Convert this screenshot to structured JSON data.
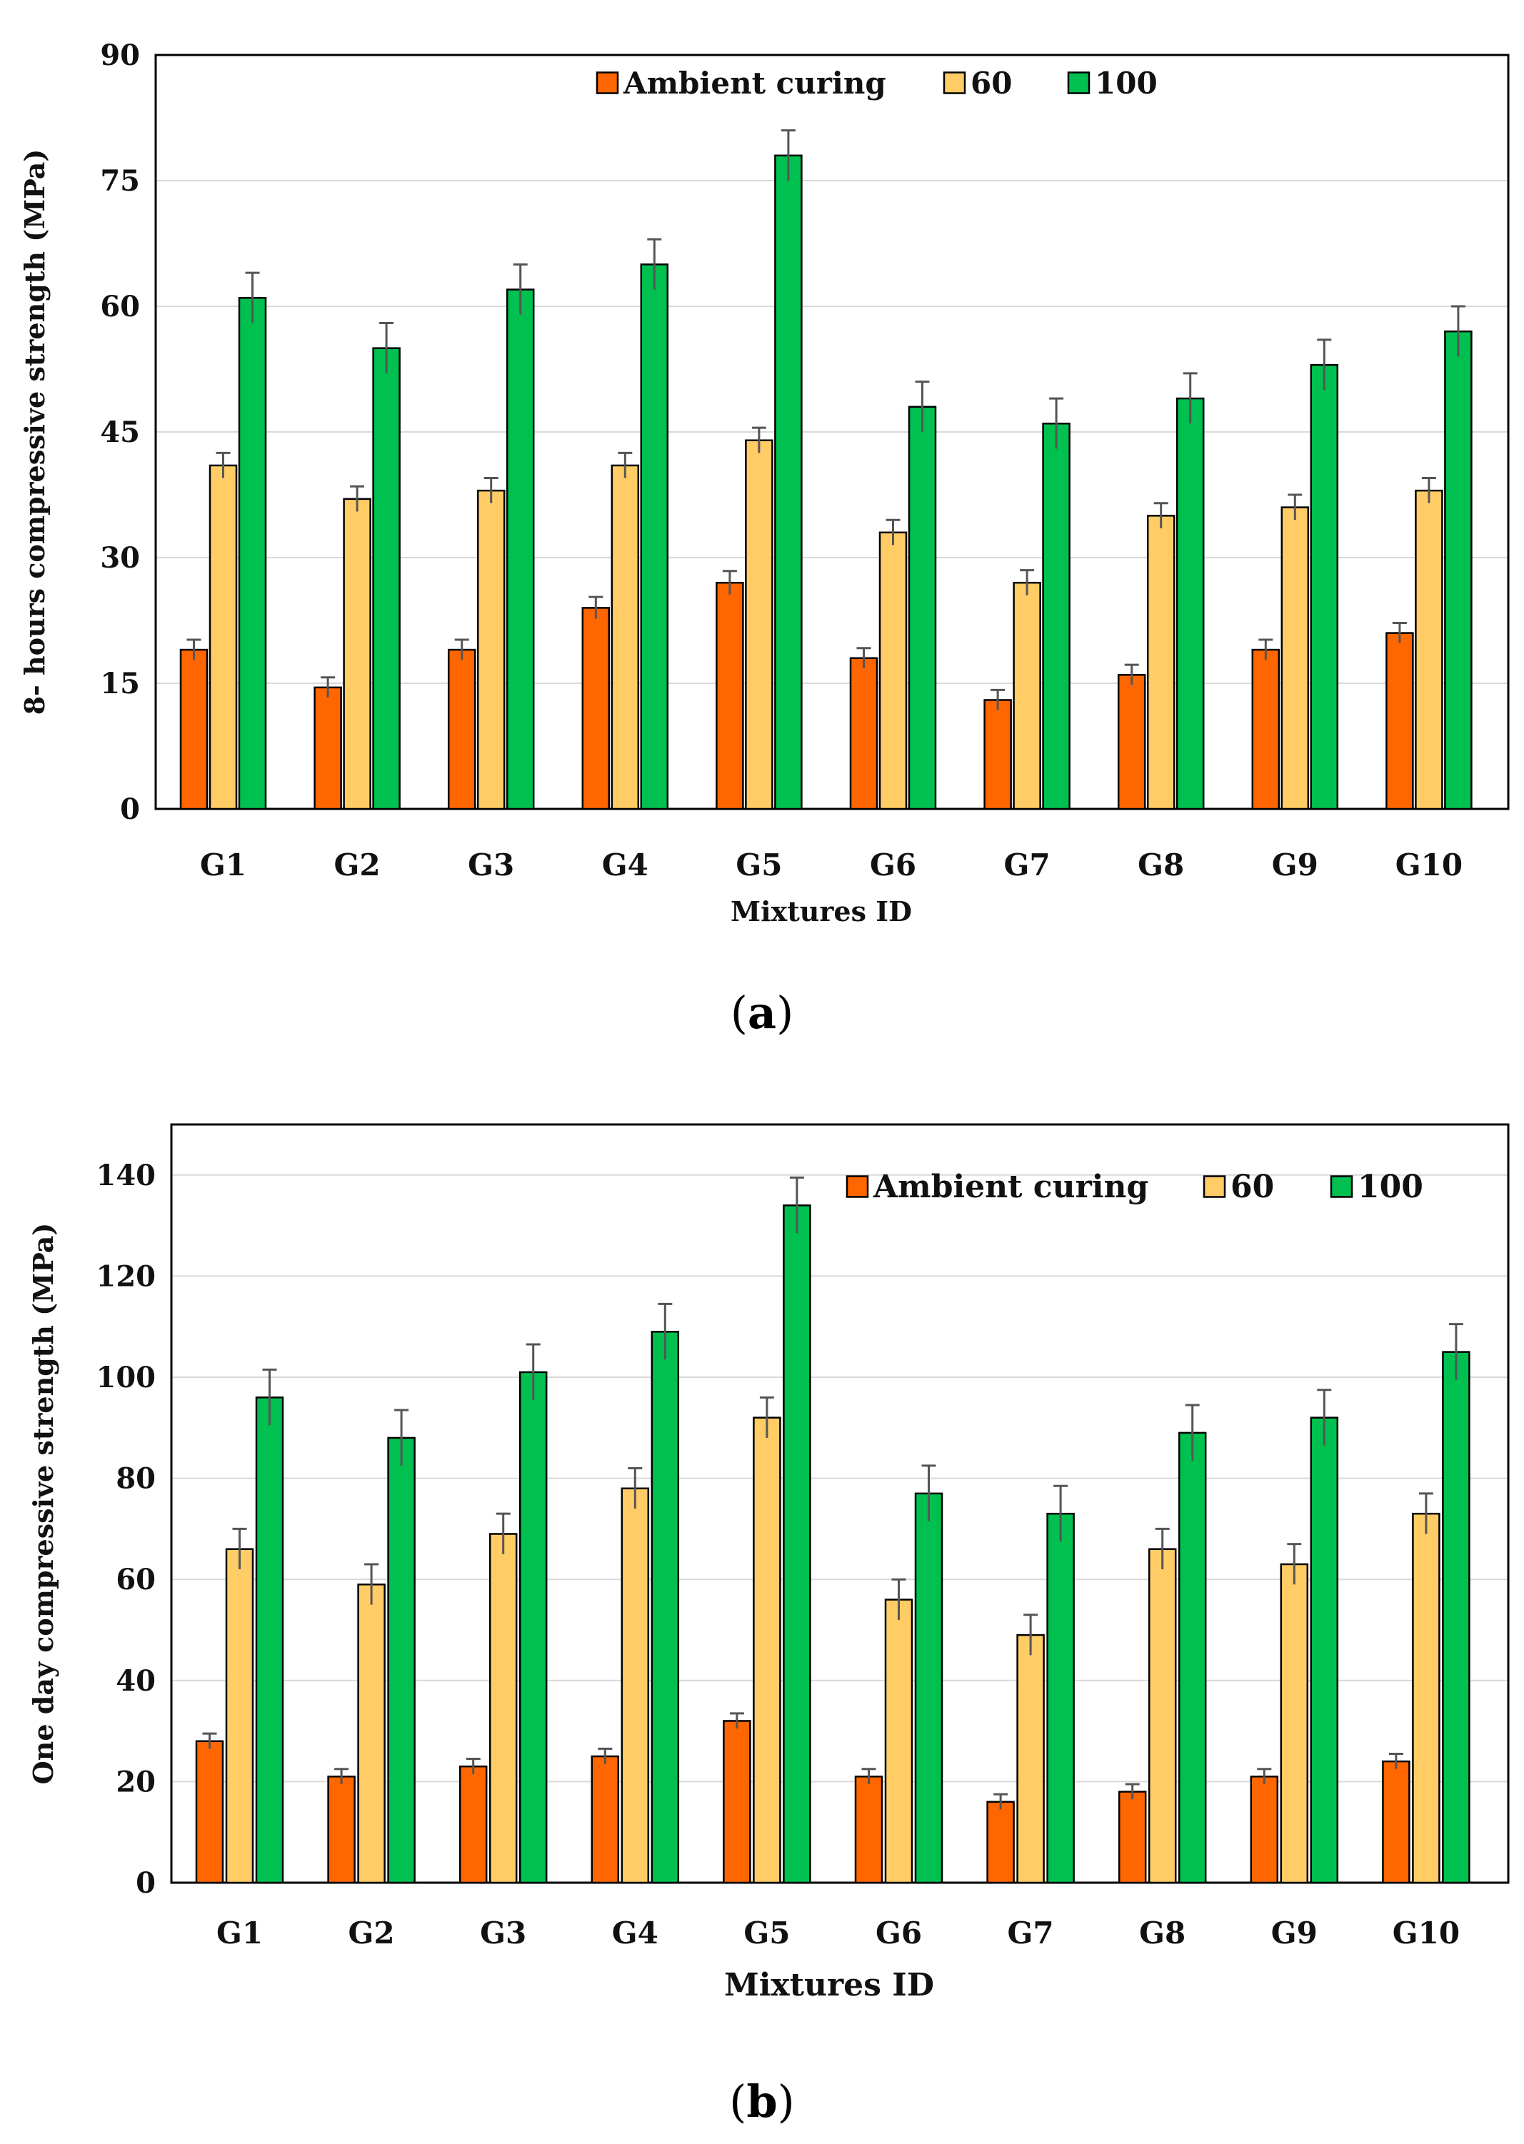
{
  "colors": {
    "ambient": "#FF6600",
    "t60": "#FFCC66",
    "t100": "#00C050",
    "error": "#555555",
    "grid": "#D9D9D9"
  },
  "chart_data": [
    {
      "type": "bar",
      "xlabel": "Mixtures ID",
      "ylabel": "8- hours compressive strength (MPa)",
      "ylim": [
        0,
        90
      ],
      "yticks": [
        "0",
        "15",
        "30",
        "45",
        "60",
        "75",
        "90"
      ],
      "ytick_values": [
        0,
        15,
        30,
        45,
        60,
        75,
        90
      ],
      "grid": true,
      "legend": "top-center",
      "categories": [
        "G1",
        "G2",
        "G3",
        "G4",
        "G5",
        "G6",
        "G7",
        "G8",
        "G9",
        "G10"
      ],
      "series": [
        {
          "name": "Ambient curing",
          "values": [
            19,
            14.5,
            19,
            24,
            27,
            18,
            13,
            16,
            19,
            21
          ],
          "errors": [
            1.2,
            1.2,
            1.2,
            1.3,
            1.4,
            1.2,
            1.2,
            1.2,
            1.2,
            1.2
          ]
        },
        {
          "name": "60",
          "values": [
            41,
            37,
            38,
            41,
            44,
            33,
            27,
            35,
            36,
            38
          ],
          "errors": [
            1.5,
            1.5,
            1.5,
            1.5,
            1.5,
            1.5,
            1.5,
            1.5,
            1.5,
            1.5
          ]
        },
        {
          "name": "100",
          "values": [
            61,
            55,
            62,
            65,
            78,
            48,
            46,
            49,
            53,
            57
          ],
          "errors": [
            3,
            3,
            3,
            3,
            3,
            3,
            3,
            3,
            3,
            3
          ]
        }
      ],
      "caption_letter": "a"
    },
    {
      "type": "bar",
      "xlabel": "Mixtures ID",
      "ylabel": "One day compressive strength (MPa)",
      "ylim": [
        0,
        150
      ],
      "yticks": [
        "0",
        "20",
        "40",
        "60",
        "80",
        "100",
        "120",
        "140"
      ],
      "ytick_values": [
        0,
        20,
        40,
        60,
        80,
        100,
        120,
        140
      ],
      "grid": true,
      "legend": "top-right",
      "categories": [
        "G1",
        "G2",
        "G3",
        "G4",
        "G5",
        "G6",
        "G7",
        "G8",
        "G9",
        "G10"
      ],
      "series": [
        {
          "name": "Ambient curing",
          "values": [
            28,
            21,
            23,
            25,
            32,
            21,
            16,
            18,
            21,
            24
          ],
          "errors": [
            1.5,
            1.5,
            1.5,
            1.5,
            1.5,
            1.5,
            1.5,
            1.5,
            1.5,
            1.5
          ]
        },
        {
          "name": "60",
          "values": [
            66,
            59,
            69,
            78,
            92,
            56,
            49,
            66,
            63,
            73
          ],
          "errors": [
            4,
            4,
            4,
            4,
            4,
            4,
            4,
            4,
            4,
            4
          ]
        },
        {
          "name": "100",
          "values": [
            96,
            88,
            101,
            109,
            134,
            77,
            73,
            89,
            92,
            105
          ],
          "errors": [
            5.5,
            5.5,
            5.5,
            5.5,
            5.5,
            5.5,
            5.5,
            5.5,
            5.5,
            5.5
          ]
        }
      ],
      "caption_letter": "b"
    }
  ],
  "captions": [
    {
      "open": "(",
      "letter": "a",
      "close": ")"
    },
    {
      "open": "(",
      "letter": "b",
      "close": ")"
    }
  ]
}
